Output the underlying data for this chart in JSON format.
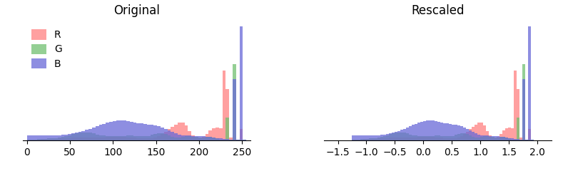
{
  "title_left": "Original",
  "title_right": "Rescaled",
  "colors": {
    "R": "#FF8080",
    "G": "#70C070",
    "B": "#6868D8"
  },
  "alpha": 0.75,
  "orig_xlim": [
    -5,
    260
  ],
  "orig_xticks": [
    0,
    50,
    100,
    150,
    200,
    250
  ],
  "rescaled_xlim": [
    -1.75,
    2.25
  ],
  "rescaled_xticks": [
    -1.5,
    -1.0,
    -0.5,
    0.0,
    0.5,
    1.0,
    1.5,
    2.0
  ],
  "bins": 64,
  "rescale_mean": 100.0,
  "rescale_std": 80.0,
  "figsize": [
    7.89,
    2.4
  ],
  "dpi": 100,
  "legend_fontsize": 10
}
